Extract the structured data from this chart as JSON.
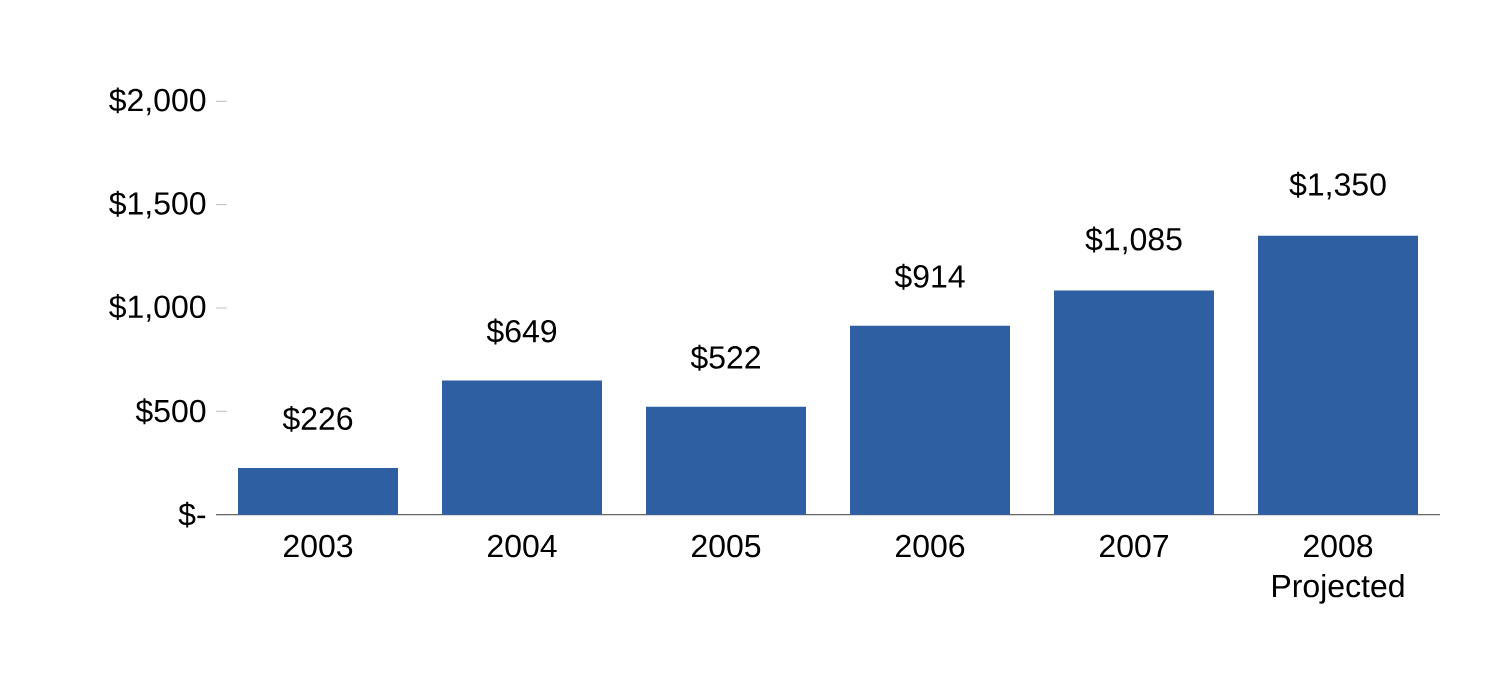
{
  "chart_data": {
    "type": "bar",
    "categories": [
      "2003",
      "2004",
      "2005",
      "2006",
      "2007",
      "2008 Projected"
    ],
    "values": [
      226,
      649,
      522,
      914,
      1085,
      1350
    ],
    "value_labels": [
      "$226",
      "$649",
      "$522",
      "$914",
      "$1,085",
      "$1,350"
    ],
    "color": "#2e5fa3",
    "ylim": [
      0,
      2000
    ],
    "yticks": [
      {
        "value": 0,
        "label": "$-"
      },
      {
        "value": 500,
        "label": "$500"
      },
      {
        "value": 1000,
        "label": "$1,000"
      },
      {
        "value": 1500,
        "label": "$1,500"
      },
      {
        "value": 2000,
        "label": "$2,000"
      }
    ],
    "grid": false
  }
}
